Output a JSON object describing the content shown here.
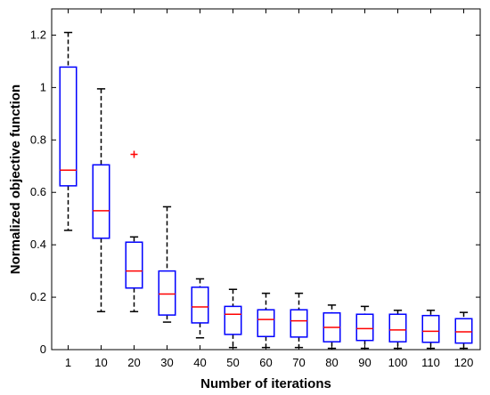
{
  "chart_data": {
    "type": "box",
    "title": "",
    "xlabel": "Number of iterations",
    "ylabel": "Normalized objective function",
    "ylim": [
      0,
      1.3
    ],
    "yticks": [
      0,
      0.2,
      0.4,
      0.6,
      0.8,
      1,
      1.2
    ],
    "ytick_labels": [
      "0",
      "0.2",
      "0.4",
      "0.6",
      "0.8",
      "1",
      "1.2"
    ],
    "categories": [
      "1",
      "10",
      "20",
      "30",
      "40",
      "50",
      "60",
      "70",
      "80",
      "90",
      "100",
      "110",
      "120"
    ],
    "boxes": [
      {
        "whisker_low": 0.455,
        "q1": 0.625,
        "median": 0.685,
        "q3": 1.078,
        "whisker_high": 1.21
      },
      {
        "whisker_low": 0.145,
        "q1": 0.425,
        "median": 0.53,
        "q3": 0.705,
        "whisker_high": 0.995
      },
      {
        "whisker_low": 0.145,
        "q1": 0.235,
        "median": 0.3,
        "q3": 0.41,
        "whisker_high": 0.43
      },
      {
        "whisker_low": 0.105,
        "q1": 0.132,
        "median": 0.212,
        "q3": 0.3,
        "whisker_high": 0.545
      },
      {
        "whisker_low": 0.045,
        "q1": 0.102,
        "median": 0.163,
        "q3": 0.238,
        "whisker_high": 0.27
      },
      {
        "whisker_low": 0.008,
        "q1": 0.058,
        "median": 0.135,
        "q3": 0.165,
        "whisker_high": 0.23
      },
      {
        "whisker_low": 0.008,
        "q1": 0.05,
        "median": 0.115,
        "q3": 0.152,
        "whisker_high": 0.215
      },
      {
        "whisker_low": 0.008,
        "q1": 0.048,
        "median": 0.11,
        "q3": 0.152,
        "whisker_high": 0.215
      },
      {
        "whisker_low": 0.005,
        "q1": 0.03,
        "median": 0.085,
        "q3": 0.14,
        "whisker_high": 0.17
      },
      {
        "whisker_low": 0.005,
        "q1": 0.035,
        "median": 0.08,
        "q3": 0.135,
        "whisker_high": 0.165
      },
      {
        "whisker_low": 0.005,
        "q1": 0.03,
        "median": 0.075,
        "q3": 0.135,
        "whisker_high": 0.15
      },
      {
        "whisker_low": 0.005,
        "q1": 0.028,
        "median": 0.07,
        "q3": 0.13,
        "whisker_high": 0.15
      },
      {
        "whisker_low": 0.005,
        "q1": 0.025,
        "median": 0.068,
        "q3": 0.118,
        "whisker_high": 0.142
      }
    ],
    "outliers": [
      {
        "category": "20",
        "value": 0.745
      }
    ],
    "grid": false,
    "legend": "none",
    "colors": {
      "box": "#0000ff",
      "median": "#ff0000",
      "whisker": "#000000",
      "outlier": "#ff0000"
    }
  }
}
